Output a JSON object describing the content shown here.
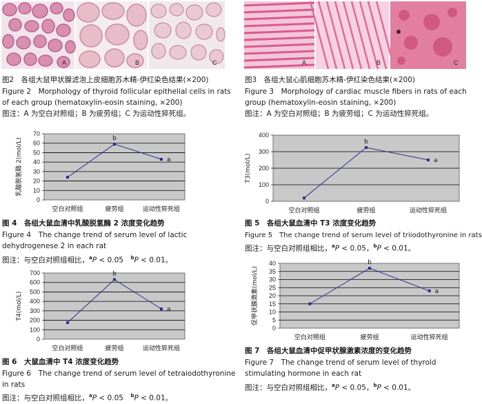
{
  "figures": [
    {
      "id": "fig2",
      "panels": [
        "A",
        "B",
        "C"
      ],
      "title_cn": "图2　各组大鼠甲状腺滤泡上皮细胞苏木精-伊红染色结果(×200)",
      "title_en_1": "Figure 2　Morphology of thyroid follicular epithelial cells in rats",
      "title_en_2": "of each group (hematoxylin-eosin staining, ×200)",
      "note": "图注：A 为空白对照组；B 为疲劳组；C 为运动性猝死组。"
    },
    {
      "id": "fig3",
      "panels": [
        "A",
        "B",
        "C"
      ],
      "title_cn": "图3　各组大鼠心肌细胞苏木精-伊红染色结果(×200)",
      "title_en_1": "Figure 3　Morphology of cardiac muscle fibers in rats of each",
      "title_en_2": "group (hematoxylin-eosin staining, ×200)",
      "note": "图注：A 为空白对照组；B 为疲劳组；C 为运动性猝死组。"
    },
    {
      "id": "fig4",
      "title_cn": "图 4　各组大鼠血清中乳酸脱氢酶 2 浓度变化趋势",
      "title_en_1": "Figure 4　The change trend of serum level of lactic",
      "title_en_2": "dehydrogenese 2 in each rat",
      "note_prefix": "图注：与空白对照组相比，",
      "note_a": "a",
      "note_p1": "P",
      "note_v1": " < 0.05　",
      "note_b": "b",
      "note_p2": "P",
      "note_v2": " < 0.01。"
    },
    {
      "id": "fig5",
      "title_cn": "图 5　各组大鼠血清中 T3 浓度变化趋势",
      "title_en_1": "Figure 5　The change trend of serum level of triiodothyronine in rats",
      "note_prefix": "图注：与空白对照组相比，",
      "note_a": "a",
      "note_p1": "P",
      "note_v1": " < 0.05，",
      "note_b": "b",
      "note_p2": "P",
      "note_v2": " < 0.01。"
    },
    {
      "id": "fig6",
      "title_cn": "图 6　大鼠血清中 T4 浓度变化趋势",
      "title_en_1": "Figure 6　The change trend of serum level of tetraiodothyronine",
      "title_en_2": "in rats",
      "note_prefix": "图注：与空白对照组相比，",
      "note_a": "a",
      "note_p1": "P",
      "note_v1": " < 0.05　",
      "note_b": "b",
      "note_p2": "P",
      "note_v2": " < 0.01。"
    },
    {
      "id": "fig7",
      "title_cn": "图 7　各组大鼠血清中促甲状腺激素浓度的变化趋势",
      "title_en_1": "Figure 7　The change trend of serum level of thyrold",
      "title_en_2": "stimulating hormone in each rat",
      "note_prefix": "图注：与空白对照组相比，",
      "note_a": "a",
      "note_p1": "P",
      "note_v1": " < 0.05，",
      "note_b": "b",
      "note_p2": "P",
      "note_v2": " < 0.01。"
    }
  ],
  "colors": {
    "plot_bg": "#c8c8c8",
    "line": "#2b2d8c",
    "marker": "#2b2d8c",
    "grid": "#000000",
    "thyroid_stain": "#d98fb0",
    "colloid_b": "#e8bdc9",
    "cardiac_stain": "#e37aa6",
    "cardiac_c": "#d85a80"
  },
  "chart_data": [
    {
      "id": "fig4",
      "type": "line",
      "categories": [
        "空白对照组",
        "疲劳组",
        "运动性猝死组"
      ],
      "values": [
        24,
        59,
        43
      ],
      "point_labels": [
        "",
        "b",
        "a"
      ],
      "ylabel": "乳酸脱氢酶 2(mol/L)",
      "ylim": [
        0,
        70
      ],
      "yticks": [
        0,
        10,
        20,
        30,
        40,
        50,
        60,
        70
      ],
      "grid": true
    },
    {
      "id": "fig5",
      "type": "line",
      "categories": [
        "空白对照组",
        "疲劳组",
        "运动性猝死组"
      ],
      "values": [
        20,
        325,
        250
      ],
      "point_labels": [
        "",
        "b",
        "a"
      ],
      "ylabel": "T3(mol/L)",
      "ylim": [
        0,
        400
      ],
      "yticks": [
        0,
        100,
        200,
        300,
        400
      ],
      "grid": true
    },
    {
      "id": "fig6",
      "type": "line",
      "categories": [
        "空白对照组",
        "疲劳组",
        "运动性猝死组"
      ],
      "values": [
        175,
        630,
        320
      ],
      "point_labels": [
        "",
        "b",
        "a"
      ],
      "ylabel": "T4(mol/L)",
      "ylim": [
        0,
        700
      ],
      "yticks": [
        0,
        100,
        200,
        300,
        400,
        500,
        600,
        700
      ],
      "grid": true
    },
    {
      "id": "fig7",
      "type": "line",
      "categories": [
        "空白对照组",
        "疲劳组",
        "运动性猝死组"
      ],
      "values": [
        15,
        37,
        23
      ],
      "point_labels": [
        "",
        "b",
        "a"
      ],
      "ylabel": "促甲状腺激素(mol/L)",
      "ylim": [
        0,
        40
      ],
      "yticks": [
        0,
        5,
        10,
        15,
        20,
        25,
        30,
        35,
        40
      ],
      "grid": true
    }
  ]
}
